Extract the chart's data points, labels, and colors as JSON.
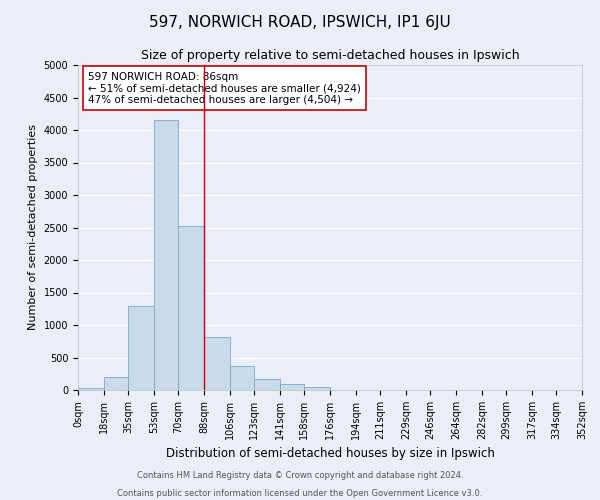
{
  "title": "597, NORWICH ROAD, IPSWICH, IP1 6JU",
  "subtitle": "Size of property relative to semi-detached houses in Ipswich",
  "xlabel": "Distribution of semi-detached houses by size in Ipswich",
  "ylabel": "Number of semi-detached properties",
  "bar_color": "#c9daea",
  "bar_edge_color": "#7aaac8",
  "bin_edges": [
    0,
    18,
    35,
    53,
    70,
    88,
    106,
    123,
    141,
    158,
    176,
    194,
    211,
    229,
    246,
    264,
    282,
    299,
    317,
    334,
    352
  ],
  "bin_labels": [
    "0sqm",
    "18sqm",
    "35sqm",
    "53sqm",
    "70sqm",
    "88sqm",
    "106sqm",
    "123sqm",
    "141sqm",
    "158sqm",
    "176sqm",
    "194sqm",
    "211sqm",
    "229sqm",
    "246sqm",
    "264sqm",
    "282sqm",
    "299sqm",
    "317sqm",
    "334sqm",
    "352sqm"
  ],
  "counts": [
    25,
    195,
    1290,
    4150,
    2520,
    810,
    370,
    165,
    85,
    45,
    0,
    0,
    0,
    0,
    0,
    0,
    0,
    0,
    0,
    0
  ],
  "vline_x": 88,
  "annotation_title": "597 NORWICH ROAD: 86sqm",
  "annotation_line1": "← 51% of semi-detached houses are smaller (4,924)",
  "annotation_line2": "47% of semi-detached houses are larger (4,504) →",
  "ylim": [
    0,
    5000
  ],
  "yticks": [
    0,
    500,
    1000,
    1500,
    2000,
    2500,
    3000,
    3500,
    4000,
    4500,
    5000
  ],
  "background_color": "#eaeff7",
  "plot_bg_color": "#eaeff7",
  "footer1": "Contains HM Land Registry data © Crown copyright and database right 2024.",
  "footer2": "Contains public sector information licensed under the Open Government Licence v3.0.",
  "vline_color": "#cc0000",
  "annotation_box_color": "#ffffff",
  "annotation_box_edge": "#cc0000",
  "grid_color": "#ffffff",
  "title_fontsize": 11,
  "subtitle_fontsize": 9,
  "axis_label_fontsize": 8.5,
  "tick_fontsize": 7,
  "annotation_fontsize": 7.5,
  "footer_fontsize": 6,
  "ylabel_fontsize": 8
}
